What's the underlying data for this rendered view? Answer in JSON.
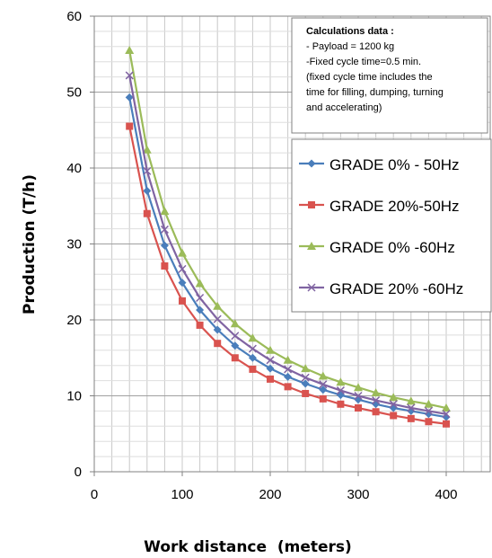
{
  "chart_data": {
    "type": "line",
    "xlabel": "Work distance  (meters)",
    "ylabel": "Production (T/h)",
    "xlim": [
      0,
      450
    ],
    "ylim": [
      0,
      60
    ],
    "xticks": [
      0,
      100,
      200,
      300,
      400
    ],
    "yticks": [
      0,
      10,
      20,
      30,
      40,
      50,
      60
    ],
    "grid": true,
    "legend_position": "right",
    "x": [
      40,
      60,
      80,
      100,
      120,
      140,
      160,
      180,
      200,
      220,
      240,
      260,
      280,
      300,
      320,
      340,
      360,
      380,
      400
    ],
    "series": [
      {
        "name": "GRADE 0% - 50Hz",
        "color": "#4a7ebb",
        "marker": "diamond",
        "values": [
          49.3,
          37.0,
          29.8,
          24.9,
          21.3,
          18.7,
          16.6,
          15.0,
          13.6,
          12.5,
          11.6,
          10.8,
          10.1,
          9.5,
          8.9,
          8.4,
          8.0,
          7.6,
          7.2
        ]
      },
      {
        "name": "GRADE 20%-50Hz",
        "color": "#d9534f",
        "marker": "square",
        "values": [
          45.5,
          34.0,
          27.1,
          22.5,
          19.3,
          16.9,
          15.0,
          13.5,
          12.2,
          11.2,
          10.3,
          9.6,
          8.9,
          8.4,
          7.9,
          7.4,
          7.0,
          6.6,
          6.3
        ]
      },
      {
        "name": "GRADE 0% -60Hz",
        "color": "#9bbb59",
        "marker": "triangle",
        "values": [
          55.5,
          42.4,
          34.3,
          28.8,
          24.8,
          21.8,
          19.5,
          17.6,
          16.0,
          14.7,
          13.6,
          12.6,
          11.8,
          11.1,
          10.4,
          9.8,
          9.3,
          8.9,
          8.4
        ]
      },
      {
        "name": "GRADE 20% -60Hz",
        "color": "#8064a2",
        "marker": "x",
        "values": [
          52.2,
          39.6,
          31.9,
          26.7,
          22.9,
          20.1,
          17.9,
          16.2,
          14.7,
          13.5,
          12.4,
          11.5,
          10.7,
          10.0,
          9.4,
          8.9,
          8.4,
          8.0,
          7.6
        ]
      }
    ],
    "annotation": {
      "title": "Calculations data :",
      "lines": [
        "- Payload = 1200 kg",
        "-Fixed cycle time=0.5 min.",
        "(fixed cycle time includes the",
        "time for filling, dumping, turning",
        "and accelerating)"
      ]
    }
  }
}
